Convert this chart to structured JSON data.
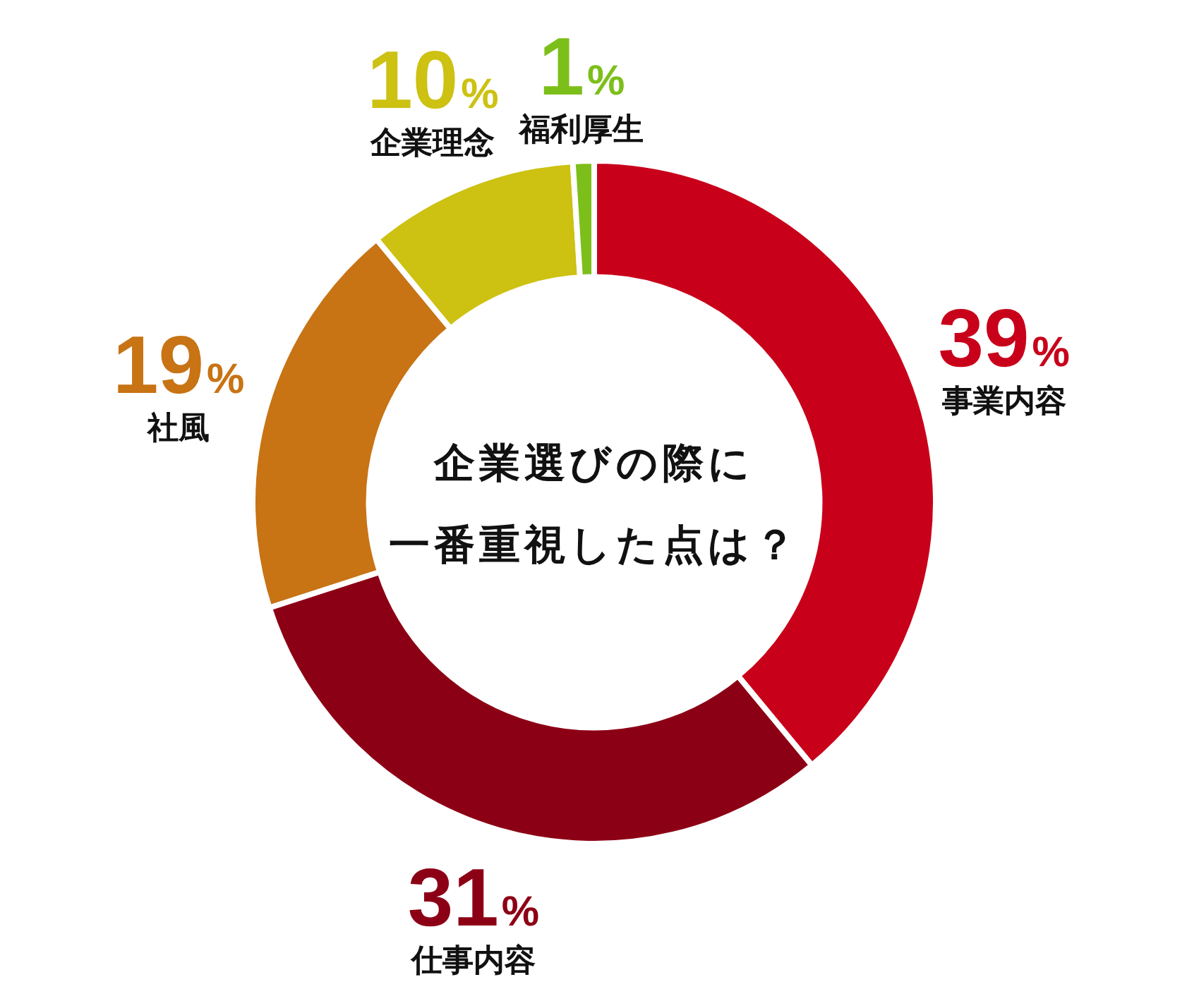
{
  "chart_data": {
    "type": "donut",
    "title": "企業選びの際に",
    "subtitle": "一番重視した点は？",
    "categories": [
      "事業内容",
      "仕事内容",
      "社風",
      "企業理念",
      "福利厚生"
    ],
    "values": [
      39,
      31,
      19,
      10,
      1
    ],
    "colors": [
      "#c8001a",
      "#8c0015",
      "#c87314",
      "#cdc112",
      "#7dbf1a"
    ],
    "value_labels": [
      "39%",
      "31%",
      "19%",
      "10%",
      "1%"
    ]
  }
}
